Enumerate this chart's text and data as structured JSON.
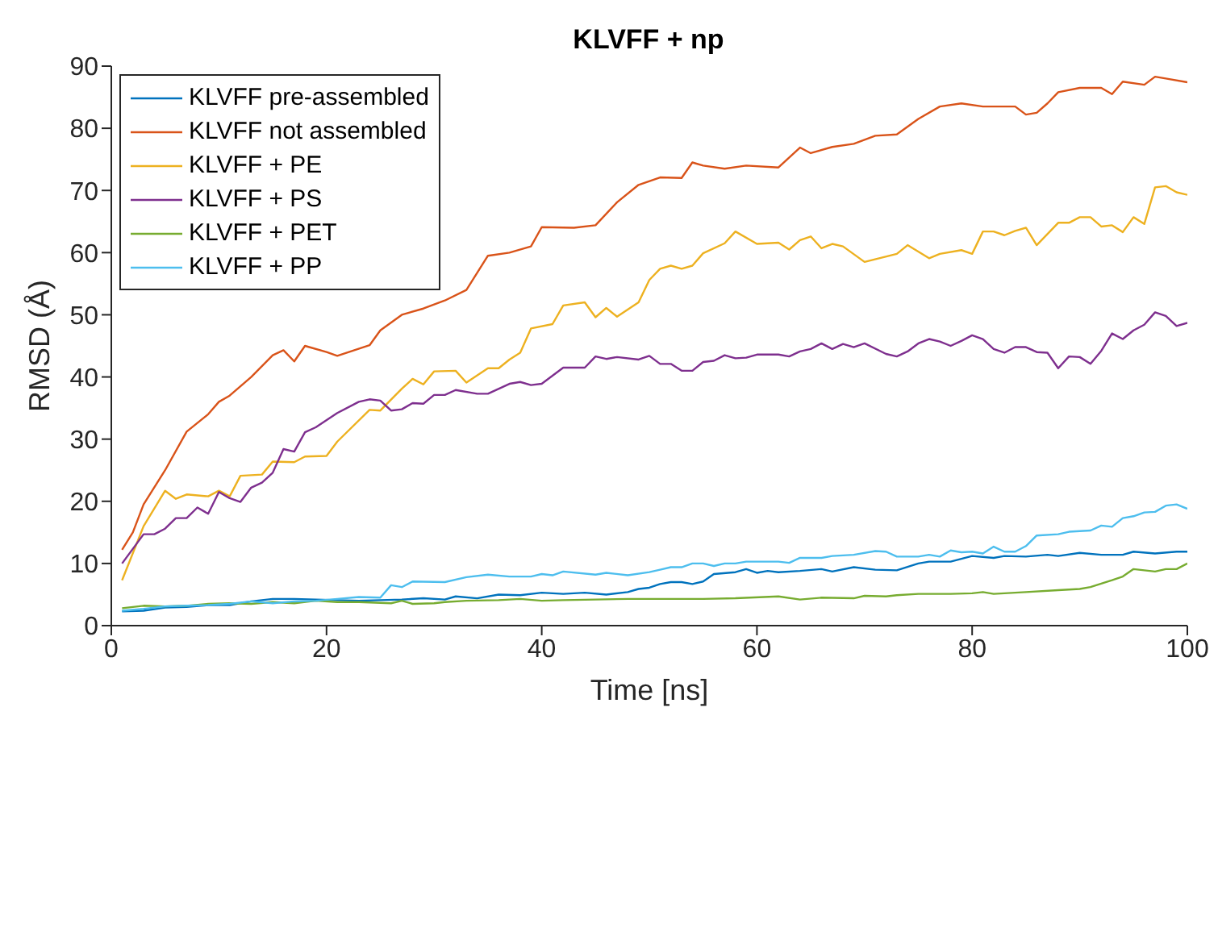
{
  "chart_data": {
    "type": "line",
    "title": "KLVFF + np",
    "xlabel": "Time [ns]",
    "ylabel": "RMSD (Å)",
    "xlim": [
      0,
      100
    ],
    "xticks": [
      0,
      20,
      40,
      60,
      80,
      100
    ],
    "ylim": [
      0,
      90
    ],
    "yticks": [
      0,
      10,
      20,
      30,
      40,
      50,
      60,
      70,
      80,
      90
    ],
    "grid": false,
    "legend": "top left",
    "marker": "none",
    "line_style": "solid",
    "series": [
      {
        "name": "KLVFF pre-assembled",
        "color": "#0072bd",
        "x": [
          1,
          3,
          5,
          7,
          9,
          11,
          13,
          15,
          17,
          19,
          21,
          23,
          25,
          27,
          29,
          31,
          32,
          34,
          36,
          38,
          40,
          42,
          44,
          46,
          48,
          49,
          50,
          51,
          52,
          53,
          54,
          55,
          56,
          58,
          59,
          60,
          61,
          62,
          64,
          66,
          67,
          69,
          71,
          73,
          75,
          76,
          78,
          80,
          82,
          83,
          85,
          87,
          88,
          90,
          92,
          94,
          95,
          97,
          99,
          100
        ],
        "values": [
          2.3,
          2.4,
          2.9,
          3.0,
          3.3,
          3.3,
          3.9,
          4.3,
          4.3,
          4.2,
          4.1,
          4.0,
          4.1,
          4.2,
          4.4,
          4.2,
          4.7,
          4.4,
          5.0,
          4.9,
          5.3,
          5.1,
          5.3,
          5.0,
          5.4,
          5.9,
          6.1,
          6.7,
          7.0,
          7.0,
          6.7,
          7.1,
          8.3,
          8.6,
          9.1,
          8.5,
          8.8,
          8.6,
          8.8,
          9.1,
          8.7,
          9.4,
          9.0,
          8.9,
          10.0,
          10.3,
          10.3,
          11.2,
          10.9,
          11.2,
          11.1,
          11.4,
          11.2,
          11.7,
          11.4,
          11.4,
          11.9,
          11.6,
          11.9,
          11.9
        ]
      },
      {
        "name": "KLVFF not assembled",
        "color": "#d95319",
        "x": [
          1,
          2,
          3,
          5,
          7,
          9,
          10,
          11,
          13,
          15,
          16,
          17,
          18,
          20,
          21,
          24,
          25,
          27,
          29,
          31,
          33,
          35,
          37,
          39,
          40,
          43,
          45,
          47,
          49,
          51,
          53,
          54,
          55,
          57,
          59,
          62,
          64,
          65,
          67,
          69,
          71,
          73,
          75,
          77,
          79,
          81,
          84,
          85,
          86,
          87,
          88,
          90,
          92,
          93,
          94,
          96,
          97,
          98,
          100
        ],
        "values": [
          12.2,
          15,
          19.5,
          25,
          31.2,
          34,
          36,
          37,
          40,
          43.5,
          44.3,
          42.5,
          45,
          44,
          43.4,
          45.1,
          47.5,
          50,
          51,
          52.3,
          54,
          59.5,
          60,
          61,
          64.1,
          64,
          64.4,
          68.1,
          70.9,
          72.1,
          72,
          74.5,
          74,
          73.5,
          74,
          73.7,
          76.9,
          76,
          77,
          77.5,
          78.8,
          79,
          81.5,
          83.5,
          84,
          83.5,
          83.5,
          82.2,
          82.5,
          84,
          85.8,
          86.5,
          86.5,
          85.5,
          87.5,
          87,
          88.3,
          88,
          87.4
        ]
      },
      {
        "name": "KLVFF + PE",
        "color": "#edb120",
        "x": [
          1,
          3,
          5,
          6,
          7,
          9,
          10,
          11,
          12,
          14,
          15,
          17,
          18,
          20,
          21,
          24,
          25,
          27,
          28,
          29,
          30,
          32,
          33,
          35,
          36,
          37,
          38,
          39,
          41,
          42,
          44,
          45,
          46,
          47,
          49,
          50,
          51,
          52,
          53,
          54,
          55,
          57,
          58,
          60,
          62,
          63,
          64,
          65,
          66,
          67,
          68,
          70,
          73,
          74,
          76,
          77,
          79,
          80,
          81,
          82,
          83,
          84,
          85,
          86,
          88,
          89,
          90,
          91,
          92,
          93,
          94,
          95,
          96,
          97,
          98,
          99,
          100
        ],
        "values": [
          7.3,
          16,
          21.7,
          20.4,
          21.1,
          20.8,
          21.7,
          20.8,
          24.1,
          24.3,
          26.4,
          26.3,
          27.2,
          27.3,
          29.6,
          34.7,
          34.6,
          38.1,
          39.7,
          38.8,
          40.9,
          41,
          39.1,
          41.4,
          41.4,
          42.8,
          43.9,
          47.8,
          48.5,
          51.5,
          52,
          49.6,
          51.1,
          49.7,
          52,
          55.6,
          57.4,
          57.9,
          57.4,
          57.9,
          59.9,
          61.5,
          63.4,
          61.4,
          61.6,
          60.5,
          62,
          62.6,
          60.7,
          61.4,
          61,
          58.5,
          59.8,
          61.2,
          59.1,
          59.8,
          60.4,
          59.8,
          63.4,
          63.4,
          62.8,
          63.5,
          64,
          61.2,
          64.8,
          64.8,
          65.7,
          65.7,
          64.2,
          64.4,
          63.3,
          65.7,
          64.6,
          70.5,
          70.7,
          69.7,
          69.3
        ]
      },
      {
        "name": "KLVFF + PS",
        "color": "#7e2f8e",
        "x": [
          1,
          3,
          4,
          5,
          6,
          7,
          8,
          9,
          10,
          11,
          12,
          13,
          14,
          15,
          16,
          17,
          18,
          19,
          21,
          23,
          24,
          25,
          26,
          27,
          28,
          29,
          30,
          31,
          32,
          34,
          35,
          37,
          38,
          39,
          40,
          42,
          44,
          45,
          46,
          47,
          49,
          50,
          51,
          52,
          53,
          54,
          55,
          56,
          57,
          58,
          59,
          60,
          62,
          63,
          64,
          65,
          66,
          67,
          68,
          69,
          70,
          72,
          73,
          74,
          75,
          76,
          77,
          78,
          79,
          80,
          81,
          82,
          83,
          84,
          85,
          86,
          87,
          88,
          89,
          90,
          91,
          92,
          93,
          94,
          95,
          96,
          97,
          98,
          99,
          100
        ],
        "values": [
          10,
          14.7,
          14.7,
          15.6,
          17.3,
          17.3,
          19,
          18,
          21.5,
          20.5,
          19.9,
          22.2,
          23,
          24.6,
          28.4,
          28,
          31.1,
          31.9,
          34.2,
          36,
          36.4,
          36.2,
          34.6,
          34.8,
          35.8,
          35.7,
          37.1,
          37.1,
          37.9,
          37.3,
          37.3,
          38.9,
          39.2,
          38.7,
          38.9,
          41.5,
          41.5,
          43.3,
          42.9,
          43.2,
          42.8,
          43.4,
          42.1,
          42.1,
          41,
          41,
          42.4,
          42.6,
          43.5,
          43,
          43.1,
          43.6,
          43.6,
          43.3,
          44.1,
          44.5,
          45.4,
          44.5,
          45.3,
          44.8,
          45.4,
          43.7,
          43.3,
          44.1,
          45.4,
          46.1,
          45.7,
          45,
          45.8,
          46.7,
          46.1,
          44.5,
          43.9,
          44.8,
          44.8,
          44,
          43.9,
          41.4,
          43.3,
          43.2,
          42.1,
          44.2,
          47,
          46.1,
          47.5,
          48.4,
          50.4,
          49.8,
          48.2,
          48.7
        ]
      },
      {
        "name": "KLVFF + PET",
        "color": "#77ac30",
        "x": [
          1,
          3,
          5,
          7,
          9,
          11,
          13,
          15,
          17,
          19,
          21,
          23,
          26,
          27,
          28,
          30,
          31,
          33,
          36,
          38,
          40,
          42,
          45,
          48,
          50,
          55,
          58,
          62,
          64,
          66,
          69,
          70,
          72,
          73,
          75,
          78,
          80,
          81,
          82,
          85,
          88,
          90,
          91,
          93,
          94,
          95,
          97,
          98,
          99,
          100
        ],
        "values": [
          2.8,
          3.2,
          3.1,
          3.2,
          3.5,
          3.6,
          3.5,
          3.8,
          3.6,
          4.0,
          3.8,
          3.8,
          3.6,
          4.0,
          3.5,
          3.6,
          3.8,
          4.0,
          4.1,
          4.3,
          4.0,
          4.1,
          4.2,
          4.3,
          4.3,
          4.3,
          4.4,
          4.7,
          4.2,
          4.5,
          4.4,
          4.8,
          4.7,
          4.9,
          5.1,
          5.1,
          5.2,
          5.4,
          5.1,
          5.4,
          5.7,
          5.9,
          6.2,
          7.3,
          7.9,
          9.1,
          8.7,
          9.1,
          9.1,
          10.0
        ]
      },
      {
        "name": "KLVFF + PP",
        "color": "#4dbeee",
        "x": [
          1,
          3,
          5,
          7,
          9,
          11,
          13,
          15,
          17,
          19,
          21,
          23,
          25,
          26,
          27,
          28,
          31,
          33,
          35,
          37,
          39,
          40,
          41,
          42,
          45,
          46,
          48,
          50,
          51,
          52,
          53,
          54,
          55,
          56,
          57,
          58,
          59,
          62,
          63,
          64,
          66,
          67,
          69,
          71,
          72,
          73,
          75,
          76,
          77,
          78,
          79,
          80,
          81,
          82,
          83,
          84,
          85,
          86,
          88,
          89,
          91,
          92,
          93,
          94,
          95,
          96,
          97,
          98,
          99,
          100
        ],
        "values": [
          2.4,
          2.7,
          3.1,
          3.2,
          3.3,
          3.5,
          3.9,
          3.6,
          3.9,
          4.0,
          4.3,
          4.6,
          4.5,
          6.5,
          6.2,
          7.1,
          7.0,
          7.8,
          8.2,
          7.9,
          7.9,
          8.3,
          8.1,
          8.7,
          8.2,
          8.5,
          8.1,
          8.6,
          9.0,
          9.4,
          9.4,
          10.0,
          10.0,
          9.6,
          10.0,
          10.0,
          10.3,
          10.3,
          10.1,
          10.9,
          10.9,
          11.2,
          11.4,
          12.0,
          11.9,
          11.1,
          11.1,
          11.4,
          11.1,
          12.1,
          11.8,
          11.9,
          11.6,
          12.7,
          11.9,
          11.9,
          12.8,
          14.5,
          14.7,
          15.1,
          15.3,
          16.1,
          15.9,
          17.3,
          17.6,
          18.2,
          18.3,
          19.3,
          19.5,
          18.8
        ]
      }
    ]
  }
}
